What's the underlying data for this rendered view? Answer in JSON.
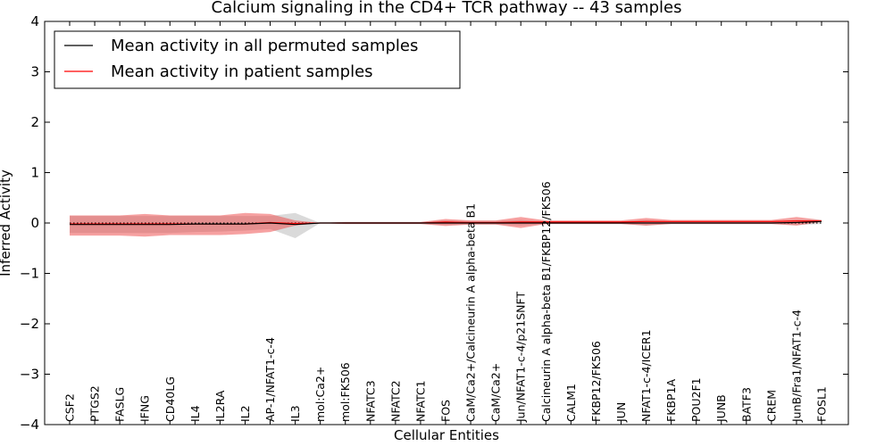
{
  "chart_data": {
    "type": "line",
    "title": "Calcium signaling in the CD4+ TCR pathway -- 43 samples",
    "xlabel": "Cellular Entities",
    "ylabel": "Inferred Activity",
    "ylim": [
      -4,
      4
    ],
    "yticks": [
      4,
      3,
      2,
      1,
      0,
      -1,
      -2,
      -3,
      -4
    ],
    "ytick_labels": [
      "4",
      "3",
      "2",
      "1",
      "0",
      "−1",
      "−2",
      "−3",
      "−4"
    ],
    "legend_position": "top-left",
    "categories": [
      "CSF2",
      "PTGS2",
      "FASLG",
      "IFNG",
      "CD40LG",
      "IL4",
      "IL2RA",
      "IL2",
      "AP-1/NFAT1-c-4",
      "IL3",
      "mol:Ca2+",
      "mol:FK506",
      "NFATC3",
      "NFATC2",
      "NFATC1",
      "FOS",
      "CaM/Ca2+/Calcineurin A alpha-beta B1",
      "CaM/Ca2+",
      "Jun/NFAT1-c-4/p21SNFT",
      "Calcineurin A alpha-beta B1/FKBP12/FK506",
      "CALM1",
      "FKBP12/FK506",
      "JUN",
      "NFAT1-c-4/ICER1",
      "FKBP1A",
      "POU2F1",
      "JUNB",
      "BATF3",
      "CREM",
      "JunB/Fra1/NFAT1-c-4",
      "FOSL1"
    ],
    "series": [
      {
        "name": "Mean activity in all permuted samples",
        "color": "#000000",
        "values": [
          -0.03,
          -0.03,
          -0.03,
          -0.03,
          -0.03,
          -0.02,
          -0.02,
          -0.02,
          0.0,
          -0.03,
          0.0,
          0.0,
          0.0,
          0.0,
          0.0,
          0.0,
          0.0,
          0.0,
          0.0,
          0.0,
          0.0,
          0.0,
          0.0,
          0.0,
          0.0,
          0.0,
          0.0,
          0.0,
          0.0,
          0.01,
          0.03
        ],
        "band_low": [
          -0.2,
          -0.2,
          -0.2,
          -0.2,
          -0.2,
          -0.18,
          -0.17,
          -0.15,
          -0.12,
          -0.3,
          0.0,
          -0.02,
          -0.02,
          -0.02,
          -0.02,
          -0.04,
          -0.03,
          -0.03,
          -0.05,
          -0.02,
          -0.02,
          -0.02,
          -0.02,
          -0.05,
          -0.02,
          -0.02,
          -0.02,
          -0.02,
          -0.02,
          -0.04,
          -0.02
        ],
        "band_high": [
          0.14,
          0.14,
          0.14,
          0.14,
          0.14,
          0.14,
          0.14,
          0.14,
          0.14,
          0.2,
          0.0,
          0.02,
          0.02,
          0.02,
          0.02,
          0.05,
          0.04,
          0.04,
          0.06,
          0.03,
          0.03,
          0.03,
          0.03,
          0.06,
          0.03,
          0.03,
          0.03,
          0.03,
          0.03,
          0.06,
          0.06
        ],
        "band_color": "#bbbbbb"
      },
      {
        "name": "Mean activity in patient samples",
        "color": "#ff0000",
        "values": [
          -0.02,
          -0.02,
          -0.02,
          -0.02,
          -0.02,
          -0.02,
          -0.02,
          -0.02,
          0.01,
          -0.01,
          0.0,
          0.0,
          0.0,
          0.0,
          0.0,
          0.02,
          0.01,
          0.01,
          0.02,
          0.02,
          0.02,
          0.02,
          0.02,
          0.03,
          0.03,
          0.03,
          0.03,
          0.03,
          0.03,
          0.04,
          0.04
        ],
        "band_low": [
          -0.25,
          -0.25,
          -0.25,
          -0.27,
          -0.24,
          -0.24,
          -0.24,
          -0.22,
          -0.18,
          -0.05,
          0.0,
          -0.02,
          -0.02,
          -0.02,
          -0.02,
          -0.06,
          -0.03,
          -0.03,
          -0.1,
          -0.02,
          -0.02,
          -0.02,
          -0.02,
          -0.05,
          -0.02,
          -0.02,
          -0.02,
          -0.02,
          -0.02,
          -0.05,
          0.02
        ],
        "band_high": [
          0.15,
          0.15,
          0.15,
          0.18,
          0.15,
          0.15,
          0.15,
          0.2,
          0.18,
          0.05,
          0.0,
          0.02,
          0.02,
          0.02,
          0.02,
          0.08,
          0.05,
          0.05,
          0.12,
          0.05,
          0.05,
          0.05,
          0.05,
          0.1,
          0.06,
          0.06,
          0.06,
          0.06,
          0.06,
          0.12,
          0.06
        ],
        "band_color": "#ee4444"
      }
    ],
    "reference_line": {
      "value": 0,
      "style": "dotted"
    }
  }
}
